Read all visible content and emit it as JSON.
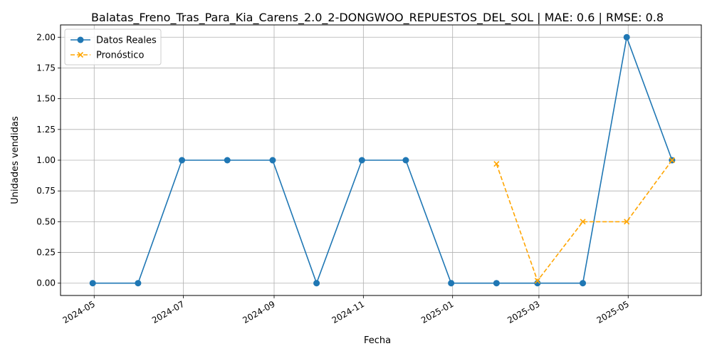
{
  "chart_data": {
    "type": "line",
    "title": "Balatas_Freno_Tras_Para_Kia_Carens_2.0_2-DONGWOO_REPUESTOS_DEL_SOL | MAE: 0.6 | RMSE: 0.8",
    "xlabel": "Fecha",
    "ylabel": "Unidades vendidas",
    "ylim": [
      -0.1,
      2.1
    ],
    "xlim": [
      "2024-04-08",
      "2025-06-20"
    ],
    "grid": true,
    "legend_position": "top-left",
    "x_ticks": [
      "2024-05",
      "2024-07",
      "2024-09",
      "2024-11",
      "2025-01",
      "2025-03",
      "2025-05"
    ],
    "y_ticks": [
      "0.00",
      "0.25",
      "0.50",
      "0.75",
      "1.00",
      "1.25",
      "1.50",
      "1.75",
      "2.00"
    ],
    "series": [
      {
        "name": "Datos Reales",
        "color": "#1f77b4",
        "line_style": "solid",
        "marker": "circle",
        "x": [
          "2024-04-30",
          "2024-05-31",
          "2024-06-30",
          "2024-07-31",
          "2024-08-31",
          "2024-09-30",
          "2024-10-31",
          "2024-11-30",
          "2024-12-31",
          "2025-01-31",
          "2025-02-28",
          "2025-03-31",
          "2025-04-30",
          "2025-05-31"
        ],
        "values": [
          0,
          0,
          1,
          1,
          1,
          0,
          1,
          1,
          0,
          0,
          0,
          0,
          2,
          1
        ]
      },
      {
        "name": "Pronóstico",
        "color": "#ffa500",
        "line_style": "dashed",
        "marker": "x",
        "x": [
          "2025-01-31",
          "2025-02-28",
          "2025-03-31",
          "2025-04-30",
          "2025-05-31"
        ],
        "values": [
          0.97,
          0.02,
          0.5,
          0.5,
          1.0
        ]
      }
    ]
  }
}
